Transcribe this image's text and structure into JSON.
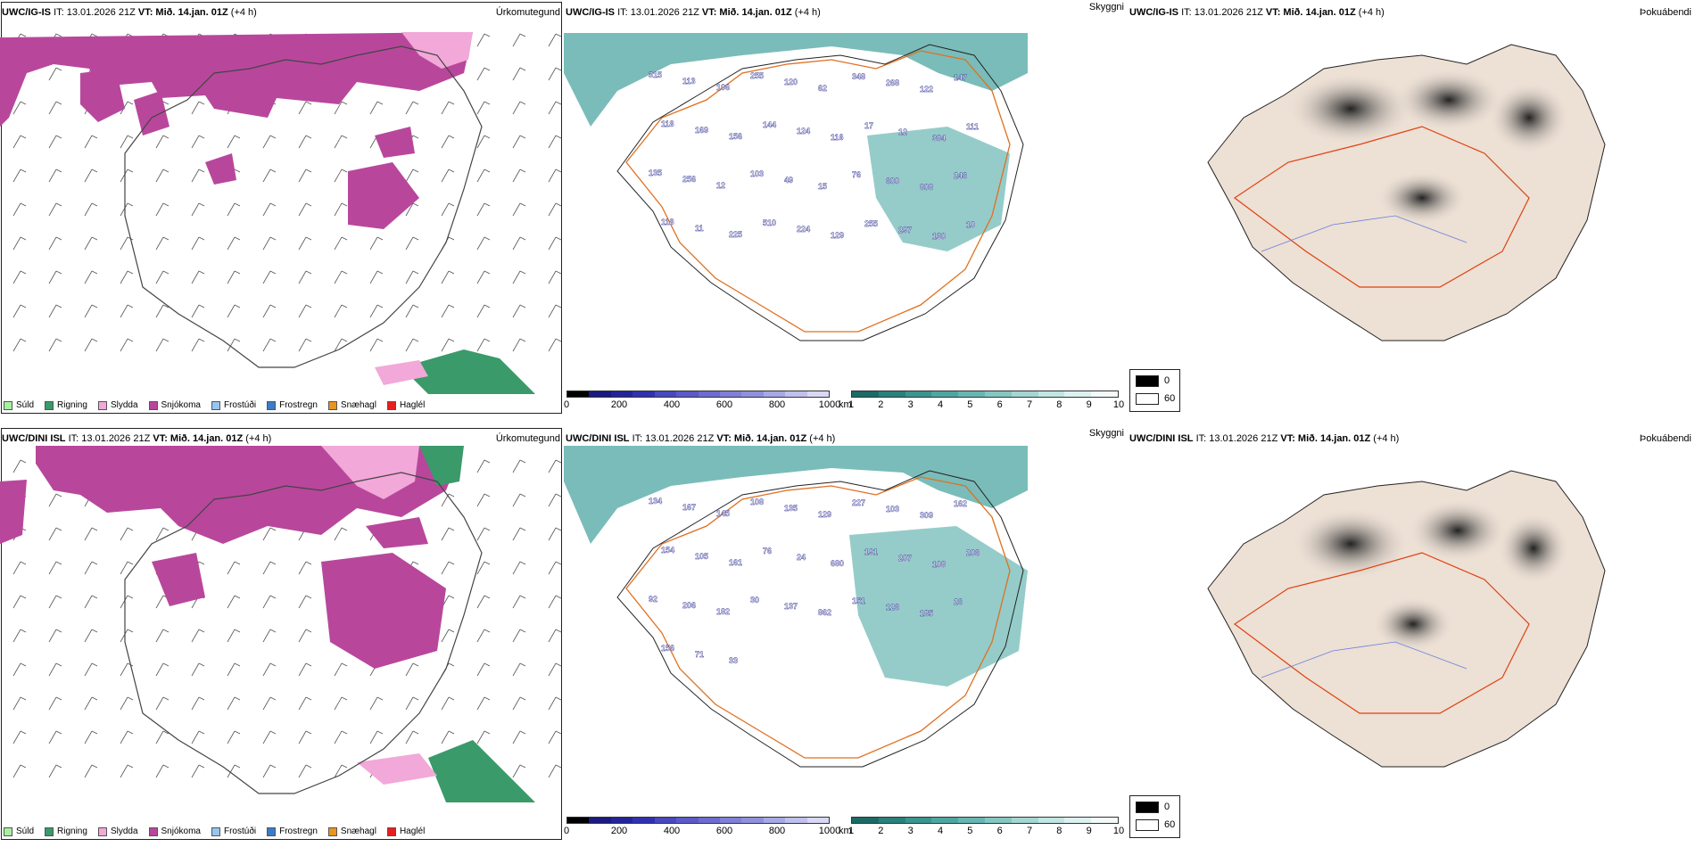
{
  "rows": [
    {
      "model": "UWC/IG-IS",
      "it_label": "IT: 13.01.2026 21Z",
      "vt_label": "VT: Mið. 14.jan. 01Z",
      "lead": "(+4 h)",
      "labels_vis": [
        "315",
        "113",
        "106",
        "255",
        "120",
        "62",
        "348",
        "268",
        "122",
        "147",
        "118",
        "169",
        "156",
        "144",
        "124",
        "116",
        "17",
        "12",
        "384",
        "111",
        "135",
        "256",
        "12",
        "103",
        "49",
        "15",
        "76",
        "600",
        "808",
        "246",
        "118",
        "11",
        "225",
        "510",
        "224",
        "129",
        "255",
        "297",
        "130",
        "10"
      ]
    },
    {
      "model": "UWC/DINI ISL",
      "it_label": "IT: 13.01.2026 21Z",
      "vt_label": "VT: Mið. 14.jan. 01Z",
      "lead": "(+4 h)",
      "labels_vis": [
        "134",
        "167",
        "145",
        "108",
        "135",
        "129",
        "227",
        "103",
        "309",
        "162",
        "154",
        "105",
        "161",
        "76",
        "24",
        "680",
        "191",
        "207",
        "108",
        "206",
        "92",
        "206",
        "182",
        "30",
        "137",
        "862",
        "151",
        "126",
        "185",
        "26",
        "156",
        "71",
        "33"
      ]
    }
  ],
  "panel_titles": {
    "precip_type": "Úrkomutegund",
    "visibility": "Skyggni",
    "fog_index": "Þokuábendi"
  },
  "precip_legend": [
    {
      "label": "Súld",
      "color": "#a6f0a0"
    },
    {
      "label": "Rigning",
      "color": "#3a9a6a"
    },
    {
      "label": "Slydda",
      "color": "#f2a8d8"
    },
    {
      "label": "Snjókoma",
      "color": "#b8479c"
    },
    {
      "label": "Frostúði",
      "color": "#98c4f0"
    },
    {
      "label": "Frostregn",
      "color": "#3a7cc8"
    },
    {
      "label": "Snæhagl",
      "color": "#e8961e"
    },
    {
      "label": "Haglél",
      "color": "#e81e1e"
    }
  ],
  "cloudbase_bar": {
    "unit": "m",
    "ticks": [
      "0",
      "200",
      "400",
      "600",
      "800",
      "1000"
    ],
    "colors": [
      "#000000",
      "#1a1a80",
      "#24249a",
      "#3030b0",
      "#4848c0",
      "#5a5ac8",
      "#6c6cd0",
      "#8080d8",
      "#9090dc",
      "#a8a8e4",
      "#c0c0ec",
      "#d8d8f4"
    ]
  },
  "visibility_bar": {
    "unit": "km",
    "ticks": [
      "1",
      "2",
      "3",
      "4",
      "5",
      "6",
      "7",
      "8",
      "9",
      "10"
    ],
    "colors": [
      "#1a6b68",
      "#2a807c",
      "#3a9490",
      "#4ea6a2",
      "#68b6b2",
      "#86c6c2",
      "#a4d6d2",
      "#c2e6e2",
      "#dcf2f0",
      "#f2fbfa"
    ]
  },
  "fog_key": {
    "low": "0",
    "high": "60"
  }
}
